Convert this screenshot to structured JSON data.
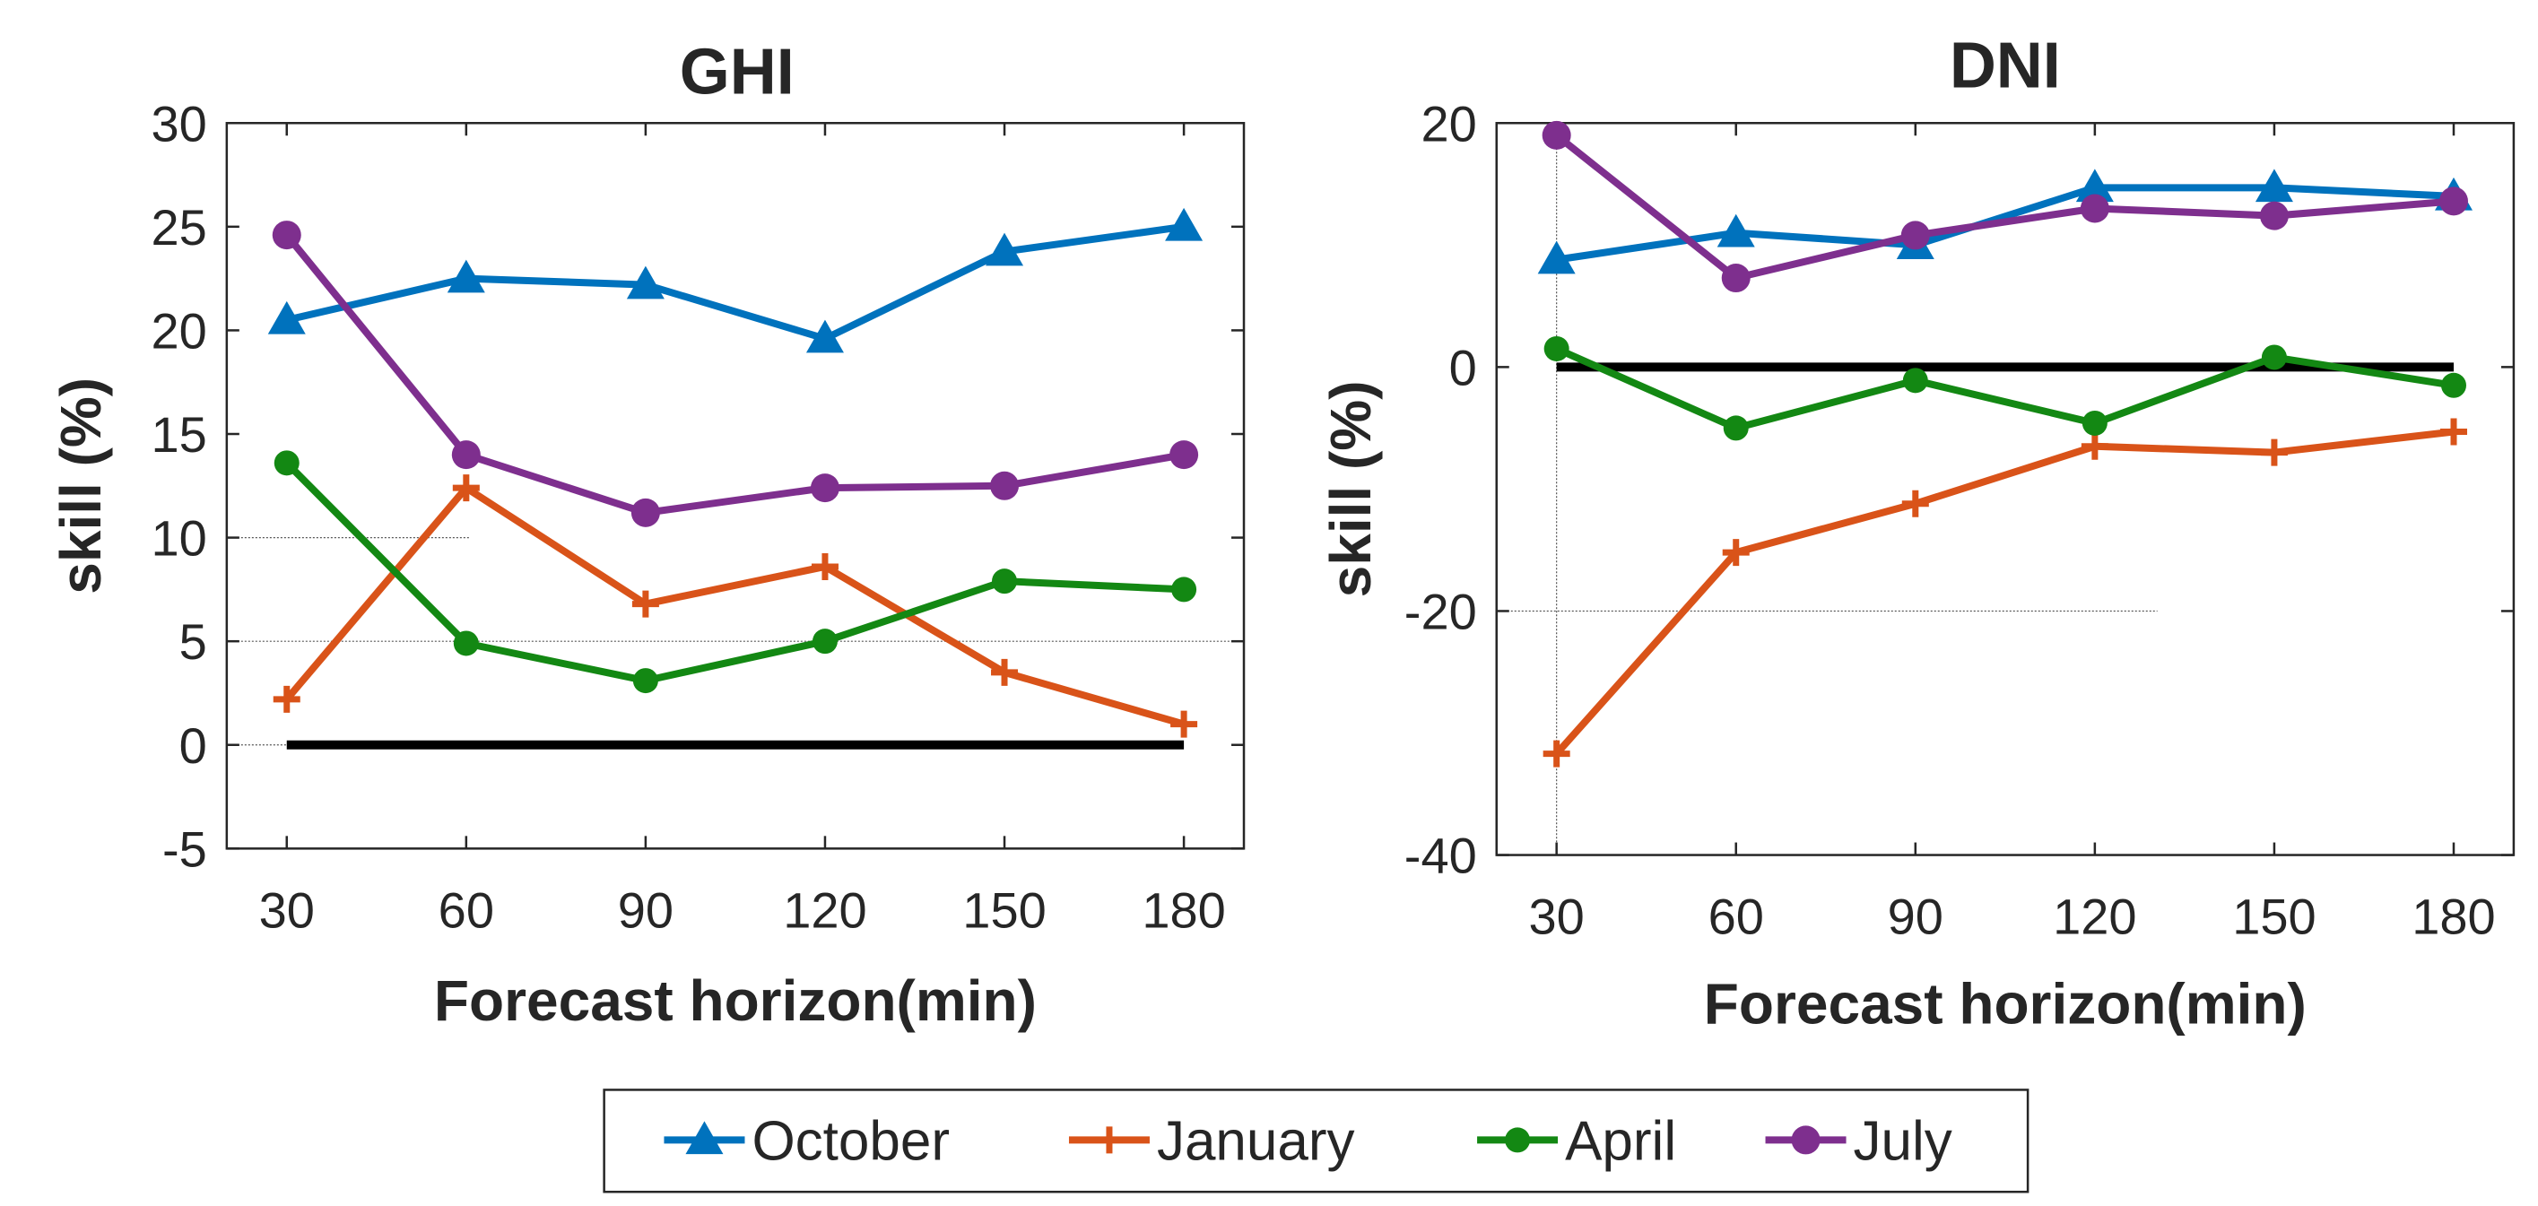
{
  "chart_data": [
    {
      "type": "line",
      "title": "GHI",
      "xlabel": "Forecast horizon(min)",
      "ylabel": "skill (%)",
      "x": [
        30,
        60,
        90,
        120,
        150,
        180
      ],
      "x_tick_labels": [
        "30",
        "60",
        "90",
        "120",
        "150",
        "180"
      ],
      "ylim": [
        -5,
        30
      ],
      "y_ticks": [
        -5,
        0,
        5,
        10,
        15,
        20,
        25,
        30
      ],
      "y_tick_labels": [
        "-5",
        "0",
        "5",
        "10",
        "15",
        "20",
        "25",
        "30"
      ],
      "zero_line": true,
      "series": [
        {
          "name": "October",
          "color": "#0072BD",
          "marker": "triangle",
          "values": [
            20.5,
            22.5,
            22.2,
            19.6,
            23.8,
            25.0
          ]
        },
        {
          "name": "January",
          "color": "#D95319",
          "marker": "plus",
          "values": [
            2.2,
            12.4,
            6.8,
            8.6,
            3.5,
            1.0
          ]
        },
        {
          "name": "April",
          "color": "#138813",
          "marker": "diamond",
          "values": [
            13.6,
            4.9,
            3.1,
            5.0,
            7.9,
            7.5
          ]
        },
        {
          "name": "July",
          "color": "#7E2F8E",
          "marker": "circle",
          "values": [
            24.6,
            14.0,
            11.2,
            12.4,
            12.5,
            14.0
          ]
        }
      ]
    },
    {
      "type": "line",
      "title": "DNI",
      "xlabel": "Forecast horizon(min)",
      "ylabel": "skill (%)",
      "x": [
        30,
        60,
        90,
        120,
        150,
        180
      ],
      "x_tick_labels": [
        "30",
        "60",
        "90",
        "120",
        "150",
        "180"
      ],
      "ylim": [
        -40,
        20
      ],
      "y_ticks": [
        -40,
        -20,
        0,
        20
      ],
      "y_tick_labels": [
        "-40",
        "-20",
        "0",
        "20"
      ],
      "zero_line": true,
      "series": [
        {
          "name": "October",
          "color": "#0072BD",
          "marker": "triangle",
          "values": [
            8.8,
            11.0,
            10.0,
            14.7,
            14.7,
            14.0
          ]
        },
        {
          "name": "January",
          "color": "#D95319",
          "marker": "plus",
          "values": [
            -31.7,
            -15.2,
            -11.2,
            -6.5,
            -7.0,
            -5.3
          ]
        },
        {
          "name": "April",
          "color": "#138813",
          "marker": "diamond",
          "values": [
            1.5,
            -5.0,
            -1.1,
            -4.6,
            0.8,
            -1.5
          ]
        },
        {
          "name": "July",
          "color": "#7E2F8E",
          "marker": "circle",
          "values": [
            19.0,
            7.3,
            10.8,
            13.0,
            12.4,
            13.6
          ]
        }
      ]
    }
  ],
  "legend": {
    "placement": "bottom-center",
    "entries": [
      "October",
      "January",
      "April",
      "July"
    ]
  }
}
